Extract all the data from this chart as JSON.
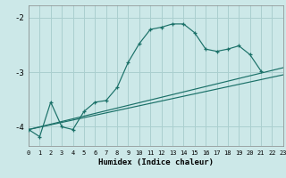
{
  "xlabel": "Humidex (Indice chaleur)",
  "bg_color": "#cce8e8",
  "grid_color": "#aacfcf",
  "line_color": "#1a7068",
  "xlim": [
    0,
    23
  ],
  "ylim": [
    -4.35,
    -1.78
  ],
  "yticks": [
    -4,
    -3,
    -2
  ],
  "xticks": [
    0,
    1,
    2,
    3,
    4,
    5,
    6,
    7,
    8,
    9,
    10,
    11,
    12,
    13,
    14,
    15,
    16,
    17,
    18,
    19,
    20,
    21,
    22,
    23
  ],
  "curve_x": [
    0,
    1,
    2,
    3,
    4,
    5,
    6,
    7,
    8,
    9,
    10,
    11,
    12,
    13,
    14,
    15,
    16,
    17,
    18,
    19,
    20,
    21
  ],
  "curve_y": [
    -4.05,
    -4.18,
    -3.55,
    -4.0,
    -4.05,
    -3.72,
    -3.55,
    -3.52,
    -3.28,
    -2.82,
    -2.48,
    -2.22,
    -2.18,
    -2.12,
    -2.12,
    -2.28,
    -2.58,
    -2.62,
    -2.58,
    -2.52,
    -2.68,
    -2.98
  ],
  "line1_x": [
    0,
    23
  ],
  "line1_y": [
    -4.05,
    -2.92
  ],
  "line2_x": [
    0,
    23
  ],
  "line2_y": [
    -4.05,
    -3.05
  ]
}
